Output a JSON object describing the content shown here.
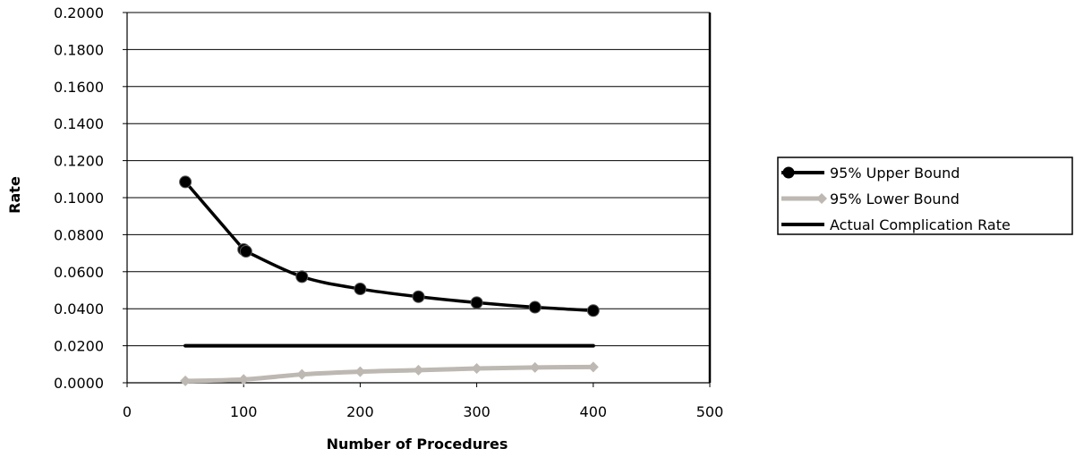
{
  "chart_data": {
    "type": "line",
    "title": "",
    "xlabel": "Number of Procedures",
    "ylabel": "Rate",
    "xlim": [
      0,
      500
    ],
    "ylim": [
      0,
      0.2
    ],
    "x_ticks": [
      "0",
      "100",
      "200",
      "300",
      "400",
      "500"
    ],
    "y_ticks": [
      "0.0000",
      "0.0200",
      "0.0400",
      "0.0600",
      "0.0800",
      "0.1000",
      "0.1200",
      "0.1400",
      "0.1600",
      "0.1800",
      "0.2000"
    ],
    "grid": "horizontal",
    "legend_position": "right",
    "series": [
      {
        "name": "95% Upper Bound",
        "color": "#000000",
        "marker": "circle",
        "x": [
          50,
          100,
          102,
          150,
          200,
          250,
          300,
          350,
          400
        ],
        "y": [
          0.1085,
          0.072,
          0.071,
          0.0573,
          0.0507,
          0.0465,
          0.0433,
          0.0408,
          0.039
        ]
      },
      {
        "name": "95% Lower Bound",
        "color": "#bdb8b2",
        "marker": "diamond",
        "x": [
          50,
          100,
          150,
          200,
          250,
          300,
          350,
          400
        ],
        "y": [
          0.001,
          0.0018,
          0.0045,
          0.006,
          0.0068,
          0.0077,
          0.0083,
          0.0085
        ]
      },
      {
        "name": "Actual Complication Rate",
        "color": "#000000",
        "marker": "none",
        "x": [
          50,
          100,
          150,
          200,
          250,
          300,
          350,
          400
        ],
        "y": [
          0.02,
          0.02,
          0.02,
          0.02,
          0.02,
          0.02,
          0.02,
          0.02
        ]
      }
    ]
  }
}
